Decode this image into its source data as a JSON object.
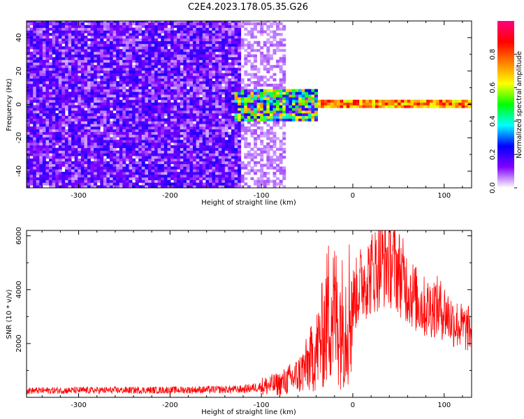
{
  "title": "C2E4.2023.178.05.35.G26",
  "chart_data": [
    {
      "type": "heatmap",
      "xlabel": "Height of straight line (km)",
      "ylabel": "Frequency (Hz)",
      "xlim": [
        -357,
        130
      ],
      "ylim": [
        -50,
        50
      ],
      "x_ticks": [
        -300,
        -200,
        -100,
        0,
        100
      ],
      "y_ticks": [
        -40,
        -20,
        0,
        20,
        40
      ],
      "colorbar": {
        "label": "Normalized spectral amplitude",
        "range": [
          0,
          1
        ],
        "ticks": [
          "0.0",
          "0.2",
          "0.4",
          "0.6",
          "0.8"
        ],
        "colors": [
          "#ffffff",
          "#8000ff",
          "#0000ff",
          "#00ffff",
          "#00ff00",
          "#ffff00",
          "#ff8000",
          "#ff0000",
          "#ff0080"
        ]
      },
      "regions": [
        {
          "x_range": [
            -357,
            -125
          ],
          "freq_range": [
            -50,
            50
          ],
          "amplitude": 0.12,
          "pattern": "broadband noise"
        },
        {
          "x_range": [
            -125,
            -75
          ],
          "freq_range": [
            -50,
            50
          ],
          "amplitude": 0.05,
          "pattern": "fading noise"
        },
        {
          "x_range": [
            -130,
            -40
          ],
          "freq_range": [
            -10,
            8
          ],
          "amplitude": 0.35,
          "pattern": "scattered signal"
        },
        {
          "x_range": [
            -40,
            130
          ],
          "freq_range": [
            -2,
            2
          ],
          "amplitude": 0.85,
          "pattern": "narrow line near 0 Hz"
        }
      ]
    },
    {
      "type": "line",
      "xlabel": "Height of straight line (km)",
      "ylabel": "SNR (10 * v/v)",
      "xlim": [
        -357,
        130
      ],
      "ylim": [
        0,
        6200
      ],
      "x_ticks": [
        -300,
        -200,
        -100,
        0,
        100
      ],
      "y_ticks": [
        2000,
        4000,
        6000
      ],
      "color": "#ff0000",
      "envelope": {
        "x": [
          -357,
          -300,
          -200,
          -120,
          -100,
          -80,
          -60,
          -50,
          -40,
          -30,
          -25,
          -20,
          -10,
          0,
          10,
          20,
          30,
          40,
          50,
          60,
          70,
          80,
          90,
          100,
          110,
          120,
          130
        ],
        "y": [
          250,
          260,
          270,
          300,
          400,
          500,
          800,
          1200,
          1700,
          2600,
          3500,
          3100,
          2800,
          3600,
          4300,
          4600,
          5000,
          5100,
          4700,
          4100,
          3600,
          3300,
          3400,
          3200,
          2800,
          2600,
          2500
        ]
      }
    }
  ]
}
